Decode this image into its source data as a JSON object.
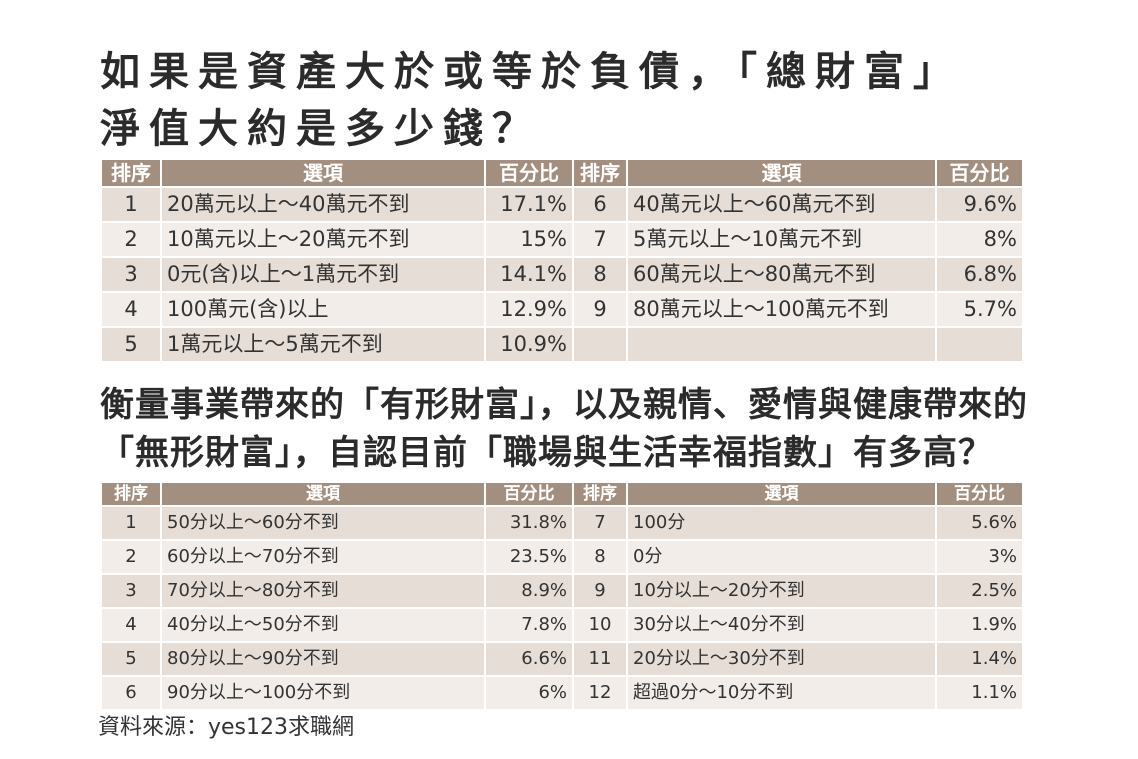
{
  "survey1": {
    "title_line1": "如果是資產大於或等於負債，「總財富」",
    "title_line2": "淨值大約是多少錢？",
    "headers": {
      "rank": "排序",
      "option": "選項",
      "percent": "百分比"
    },
    "left": [
      {
        "rank": "1",
        "option": "20萬元以上～40萬元不到",
        "percent": "17.1%"
      },
      {
        "rank": "2",
        "option": "10萬元以上～20萬元不到",
        "percent": "15%"
      },
      {
        "rank": "3",
        "option": "0元(含)以上～1萬元不到",
        "percent": "14.1%"
      },
      {
        "rank": "4",
        "option": "100萬元(含)以上",
        "percent": "12.9%"
      },
      {
        "rank": "5",
        "option": "1萬元以上～5萬元不到",
        "percent": "10.9%"
      }
    ],
    "right": [
      {
        "rank": "6",
        "option": "40萬元以上～60萬元不到",
        "percent": "9.6%"
      },
      {
        "rank": "7",
        "option": "5萬元以上～10萬元不到",
        "percent": "8%"
      },
      {
        "rank": "8",
        "option": "60萬元以上～80萬元不到",
        "percent": "6.8%"
      },
      {
        "rank": "9",
        "option": "80萬元以上～100萬元不到",
        "percent": "5.7%"
      }
    ]
  },
  "survey2": {
    "title_line1": "衡量事業帶來的「有形財富」，以及親情、愛情與健康帶來的",
    "title_line2": "「無形財富」，自認目前「職場與生活幸福指數」有多高？",
    "headers": {
      "rank": "排序",
      "option": "選項",
      "percent": "百分比"
    },
    "left": [
      {
        "rank": "1",
        "option": "50分以上～60分不到",
        "percent": "31.8%"
      },
      {
        "rank": "2",
        "option": "60分以上～70分不到",
        "percent": "23.5%"
      },
      {
        "rank": "3",
        "option": "70分以上～80分不到",
        "percent": "8.9%"
      },
      {
        "rank": "4",
        "option": "40分以上～50分不到",
        "percent": "7.8%"
      },
      {
        "rank": "5",
        "option": "80分以上～90分不到",
        "percent": "6.6%"
      },
      {
        "rank": "6",
        "option": "90分以上～100分不到",
        "percent": "6%"
      }
    ],
    "right": [
      {
        "rank": "7",
        "option": "100分",
        "percent": "5.6%"
      },
      {
        "rank": "8",
        "option": "0分",
        "percent": "3%"
      },
      {
        "rank": "9",
        "option": "10分以上～20分不到",
        "percent": "2.5%"
      },
      {
        "rank": "10",
        "option": "30分以上～40分不到",
        "percent": "1.9%"
      },
      {
        "rank": "11",
        "option": "20分以上～30分不到",
        "percent": "1.4%"
      },
      {
        "rank": "12",
        "option": "超過0分～10分不到",
        "percent": "1.1%"
      }
    ]
  },
  "source": "資料來源：yes123求職網",
  "colors": {
    "header": "#a38f80",
    "row_dark": "#e6ddd6",
    "row_light": "#f2ede9"
  }
}
